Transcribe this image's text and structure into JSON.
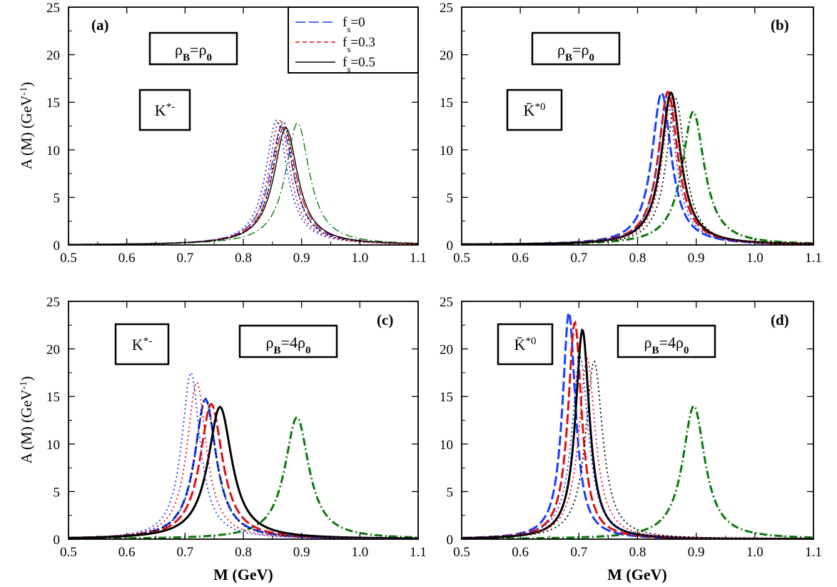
{
  "chart_data": [
    {
      "type": "line",
      "panel": "(a)",
      "xlim": [
        0.5,
        1.1
      ],
      "ylim": [
        0,
        25
      ],
      "xticks": [
        "0.5",
        "0.6",
        "0.7",
        "0.8",
        "0.9",
        "1.0",
        "1.1"
      ],
      "yticks": [
        "0",
        "5",
        "10",
        "15",
        "20",
        "25"
      ],
      "ylabel": "A (M) (GeV-1)",
      "xlabel": "",
      "meson": "K*-",
      "density": "ρB=ρ0",
      "grid": false,
      "series": [
        {
          "style": "dash-dot",
          "color": "#0a7a0a",
          "peak_x": 0.893,
          "peak_y": 12.8,
          "width": 0.05
        },
        {
          "style": "dash",
          "color": "#1a3cff",
          "peak_x": 0.866,
          "peak_y": 12.4,
          "width": 0.05
        },
        {
          "style": "dash",
          "color": "#e01010",
          "peak_x": 0.87,
          "peak_y": 12.4,
          "width": 0.05
        },
        {
          "style": "solid",
          "color": "#000000",
          "peak_x": 0.873,
          "peak_y": 12.3,
          "width": 0.05
        },
        {
          "style": "dot",
          "color": "#1a3cff",
          "peak_x": 0.857,
          "peak_y": 13.1,
          "width": 0.045
        },
        {
          "style": "dot",
          "color": "#e01010",
          "peak_x": 0.862,
          "peak_y": 13.1,
          "width": 0.045
        },
        {
          "style": "dot",
          "color": "#000000",
          "peak_x": 0.868,
          "peak_y": 13.0,
          "width": 0.045
        }
      ]
    },
    {
      "type": "line",
      "panel": "(b)",
      "xlim": [
        0.5,
        1.1
      ],
      "ylim": [
        0,
        25
      ],
      "xticks": [
        "0.5",
        "0.6",
        "0.7",
        "0.8",
        "0.9",
        "1.0",
        "1.1"
      ],
      "yticks": [
        "0",
        "5",
        "10",
        "15",
        "20",
        "25"
      ],
      "ylabel": "",
      "xlabel": "",
      "meson": "K̄*0",
      "density": "ρB=ρ0",
      "grid": false,
      "series": [
        {
          "style": "dash-dot",
          "color": "#0a7a0a",
          "peak_x": 0.895,
          "peak_y": 14.0,
          "width": 0.046
        },
        {
          "style": "dash",
          "color": "#1a3cff",
          "peak_x": 0.841,
          "peak_y": 16.0,
          "width": 0.04
        },
        {
          "style": "dash",
          "color": "#e01010",
          "peak_x": 0.852,
          "peak_y": 16.1,
          "width": 0.04
        },
        {
          "style": "solid",
          "color": "#000000",
          "peak_x": 0.857,
          "peak_y": 16.0,
          "width": 0.04
        },
        {
          "style": "dot",
          "color": "#1a3cff",
          "peak_x": 0.85,
          "peak_y": 15.5,
          "width": 0.038
        },
        {
          "style": "dot",
          "color": "#e01010",
          "peak_x": 0.858,
          "peak_y": 15.5,
          "width": 0.038
        },
        {
          "style": "dot",
          "color": "#000000",
          "peak_x": 0.865,
          "peak_y": 15.4,
          "width": 0.038
        }
      ]
    },
    {
      "type": "line",
      "panel": "(c)",
      "xlim": [
        0.5,
        1.1
      ],
      "ylim": [
        0,
        25
      ],
      "xticks": [
        "0.5",
        "0.6",
        "0.7",
        "0.8",
        "0.9",
        "1.0",
        "1.1"
      ],
      "yticks": [
        "0",
        "5",
        "10",
        "15",
        "20",
        "25"
      ],
      "ylabel": "A (M) (GeV-1)",
      "xlabel": "M (GeV)",
      "meson": "K*-",
      "density": "ρB=4ρ0",
      "grid": false,
      "series": [
        {
          "style": "dash-dot",
          "color": "#0a7a0a",
          "peak_x": 0.892,
          "peak_y": 12.8,
          "width": 0.05
        },
        {
          "style": "dash",
          "color": "#1a3cff",
          "peak_x": 0.735,
          "peak_y": 14.7,
          "width": 0.045
        },
        {
          "style": "dash",
          "color": "#e01010",
          "peak_x": 0.745,
          "peak_y": 14.2,
          "width": 0.047
        },
        {
          "style": "solid",
          "color": "#000000",
          "peak_x": 0.76,
          "peak_y": 13.9,
          "width": 0.05
        },
        {
          "style": "dot",
          "color": "#1a3cff",
          "peak_x": 0.71,
          "peak_y": 17.5,
          "width": 0.038
        },
        {
          "style": "dot",
          "color": "#e01010",
          "peak_x": 0.72,
          "peak_y": 16.5,
          "width": 0.04
        },
        {
          "style": "dot",
          "color": "#000000",
          "peak_x": 0.735,
          "peak_y": 14.8,
          "width": 0.044
        }
      ]
    },
    {
      "type": "line",
      "panel": "(d)",
      "xlim": [
        0.5,
        1.1
      ],
      "ylim": [
        0,
        25
      ],
      "xticks": [
        "0.5",
        "0.6",
        "0.7",
        "0.8",
        "0.9",
        "1.0",
        "1.1"
      ],
      "yticks": [
        "0",
        "5",
        "10",
        "15",
        "20",
        "25"
      ],
      "ylabel": "",
      "xlabel": "M (GeV)",
      "meson": "K̄*0",
      "density": "ρB=4ρ0",
      "grid": false,
      "series": [
        {
          "style": "dash-dot",
          "color": "#0a7a0a",
          "peak_x": 0.896,
          "peak_y": 14.0,
          "width": 0.046
        },
        {
          "style": "dash",
          "color": "#1a3cff",
          "peak_x": 0.683,
          "peak_y": 23.8,
          "width": 0.027
        },
        {
          "style": "dash",
          "color": "#e01010",
          "peak_x": 0.693,
          "peak_y": 22.8,
          "width": 0.028
        },
        {
          "style": "solid",
          "color": "#000000",
          "peak_x": 0.706,
          "peak_y": 22.0,
          "width": 0.029
        },
        {
          "style": "dot",
          "color": "#1a3cff",
          "peak_x": 0.702,
          "peak_y": 19.2,
          "width": 0.034
        },
        {
          "style": "dot",
          "color": "#e01010",
          "peak_x": 0.714,
          "peak_y": 19.0,
          "width": 0.034
        },
        {
          "style": "dot",
          "color": "#000000",
          "peak_x": 0.726,
          "peak_y": 18.7,
          "width": 0.035
        }
      ]
    }
  ],
  "legend": {
    "placement": "top, panel (a)",
    "entries": [
      {
        "label": "fs=0",
        "style": "dash",
        "color": "#1a3cff"
      },
      {
        "label": "fs=0.3",
        "style": "dash",
        "color": "#e01010"
      },
      {
        "label": "fs=0.5",
        "style": "solid",
        "color": "#000000"
      }
    ]
  }
}
